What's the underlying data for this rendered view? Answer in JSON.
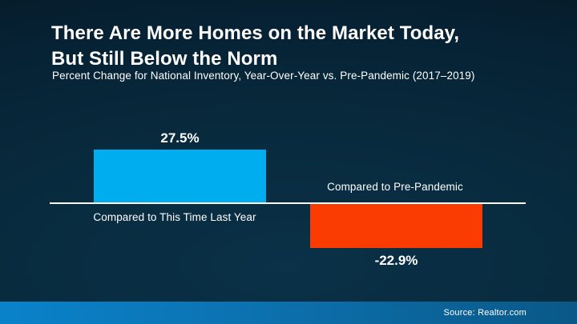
{
  "header": {
    "title_line1": "There Are More Homes on the Market Today,",
    "title_line2": "But Still Below the Norm",
    "subtitle": "Percent Change for National Inventory, Year-Over-Year vs. Pre-Pandemic (2017–2019)"
  },
  "chart_data": {
    "type": "bar",
    "title": "There Are More Homes on the Market Today, But Still Below the Norm",
    "subtitle": "Percent Change for National Inventory, Year-Over-Year vs. Pre-Pandemic (2017–2019)",
    "categories": [
      "Compared to This Time Last Year",
      "Compared to Pre-Pandemic"
    ],
    "values": [
      27.5,
      -22.9
    ],
    "value_labels": [
      "27.5%",
      "-22.9%"
    ],
    "bar_colors": [
      "#00AEEF",
      "#FA3B02"
    ],
    "baseline": 0,
    "ylim": [
      -30,
      35
    ],
    "grid": false,
    "legend": false,
    "orientation": "vertical",
    "xlabel": "",
    "ylabel": ""
  },
  "footer": {
    "source": "Source: Realtor.com"
  },
  "colors": {
    "positive_bar": "#00AEEF",
    "negative_bar": "#FA3B02",
    "axis_line": "#FFFFFF",
    "background_top": "#04131D",
    "background_glow": "#0A3148",
    "footer_gradient_left": "#0A82CB",
    "footer_gradient_right": "#0A5887"
  }
}
